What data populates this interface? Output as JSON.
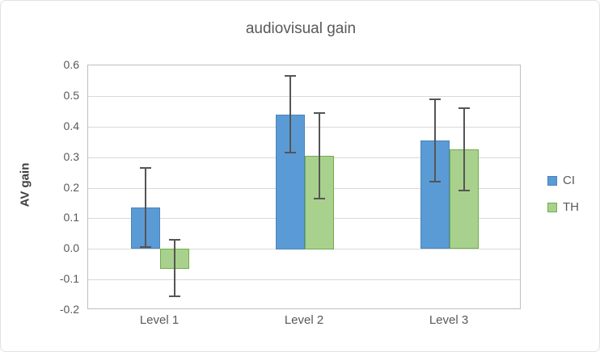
{
  "figure": {
    "background": "#ffffff",
    "border_color": "#e2e2e2"
  },
  "chart_data": {
    "type": "bar",
    "title": "audiovisual gain",
    "ylabel": "AV gain",
    "xlabel": "",
    "categories": [
      "Level 1",
      "Level 2",
      "Level 3"
    ],
    "series": [
      {
        "name": "CI",
        "fill": "#5B9BD5",
        "border": "#4A84BC",
        "values": [
          0.135,
          0.44,
          0.355
        ],
        "error_low": [
          0.005,
          0.315,
          0.22
        ],
        "error_high": [
          0.265,
          0.565,
          0.49
        ]
      },
      {
        "name": "TH",
        "fill": "#A9D18E",
        "border": "#70AD47",
        "values": [
          -0.065,
          0.305,
          0.325
        ],
        "error_low": [
          -0.155,
          0.165,
          0.19
        ],
        "error_high": [
          0.03,
          0.445,
          0.46
        ]
      }
    ],
    "ylim": [
      -0.2,
      0.6
    ],
    "yticks": [
      "0.6",
      "0.5",
      "0.4",
      "0.3",
      "0.2",
      "0.1",
      "0.0",
      "-0.1",
      "-0.2"
    ],
    "grid": true,
    "gridline_color": "#d9d9d9",
    "plot_border_color": "#bfbfbf",
    "error_bar_color": "#555555",
    "text_color": "#595959",
    "axis_title_color": "#404040",
    "legend_position": "right"
  }
}
